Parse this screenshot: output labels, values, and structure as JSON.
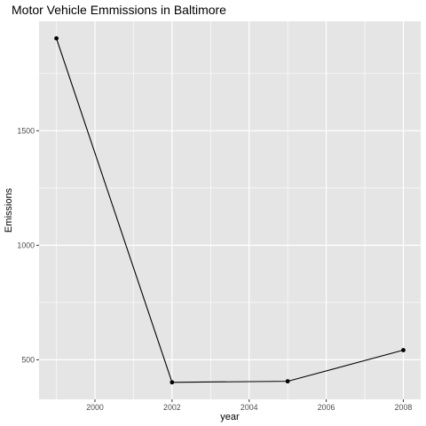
{
  "chart_data": {
    "type": "line",
    "title": "Motor Vehicle Emmissions in Baltimore",
    "xlabel": "year",
    "ylabel": "Emissions",
    "x": [
      1999,
      2002,
      2005,
      2008
    ],
    "series": [
      {
        "values": [
          1903.5,
          401.5,
          406.0,
          542.0
        ]
      }
    ],
    "xlim": [
      1998.55,
      2008.45
    ],
    "ylim": [
      327,
      1978
    ],
    "xticks": [
      2000,
      2002,
      2004,
      2006,
      2008
    ],
    "xtick_labels": [
      "2000",
      "2002",
      "2004",
      "2006",
      "2008"
    ],
    "yticks": [
      500,
      1000,
      1500
    ],
    "ytick_labels": [
      "500",
      "1000",
      "1500"
    ],
    "grid": true,
    "legend": "none",
    "colors": {
      "panel": "#e5e5e5",
      "grid": "#ffffff",
      "line": "#000000",
      "tick_text": "#4d4d4d",
      "tick_mark": "#333333"
    }
  }
}
